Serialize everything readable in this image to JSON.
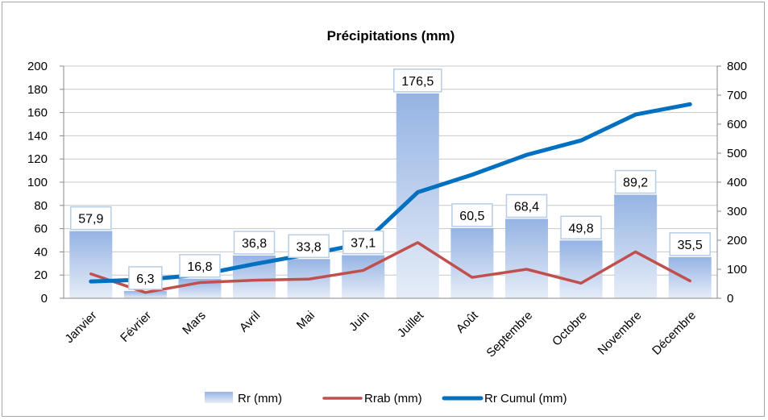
{
  "chart_data": {
    "type": "bar",
    "title": "Précipitations (mm)",
    "categories": [
      "Janvier",
      "Février",
      "Mars",
      "Avril",
      "Mai",
      "Juin",
      "Juillet",
      "Août",
      "Septembre",
      "Octobre",
      "Novembre",
      "Décembre"
    ],
    "series": [
      {
        "name": "Rr (mm)",
        "type": "bar",
        "axis": "left",
        "values": [
          57.9,
          6.3,
          16.8,
          36.8,
          33.8,
          37.1,
          176.5,
          60.5,
          68.4,
          49.8,
          89.2,
          35.5
        ],
        "labels": [
          "57,9",
          "6,3",
          "16,8",
          "36,8",
          "33,8",
          "37,1",
          "176,5",
          "60,5",
          "68,4",
          "49,8",
          "89,2",
          "35,5"
        ]
      },
      {
        "name": "Rrab (mm)",
        "type": "line",
        "axis": "left",
        "color": "#c0504d",
        "values": [
          21,
          5,
          13.5,
          15.5,
          16.5,
          24,
          48,
          18,
          25,
          13,
          40,
          15
        ]
      },
      {
        "name": "Rr Cumul (mm)",
        "type": "line",
        "axis": "right",
        "color": "#0070c0",
        "values": [
          57.9,
          64.2,
          81.0,
          117.8,
          151.6,
          188.7,
          365.2,
          425.7,
          494.1,
          543.9,
          633.1,
          668.6
        ]
      }
    ],
    "y_left": {
      "min": 0,
      "max": 200,
      "ticks": [
        "0",
        "20",
        "40",
        "60",
        "80",
        "100",
        "120",
        "140",
        "160",
        "180",
        "200"
      ]
    },
    "y_right": {
      "min": 0,
      "max": 800,
      "ticks": [
        "0",
        "100",
        "200",
        "300",
        "400",
        "500",
        "600",
        "700",
        "800"
      ]
    },
    "grid": true,
    "legend_position": "bottom",
    "colors": {
      "bar_top": "#95b3e3",
      "bar_bottom": "#e6edf8",
      "grid": "#c8c8c8",
      "label_border": "#b7cde4"
    }
  }
}
